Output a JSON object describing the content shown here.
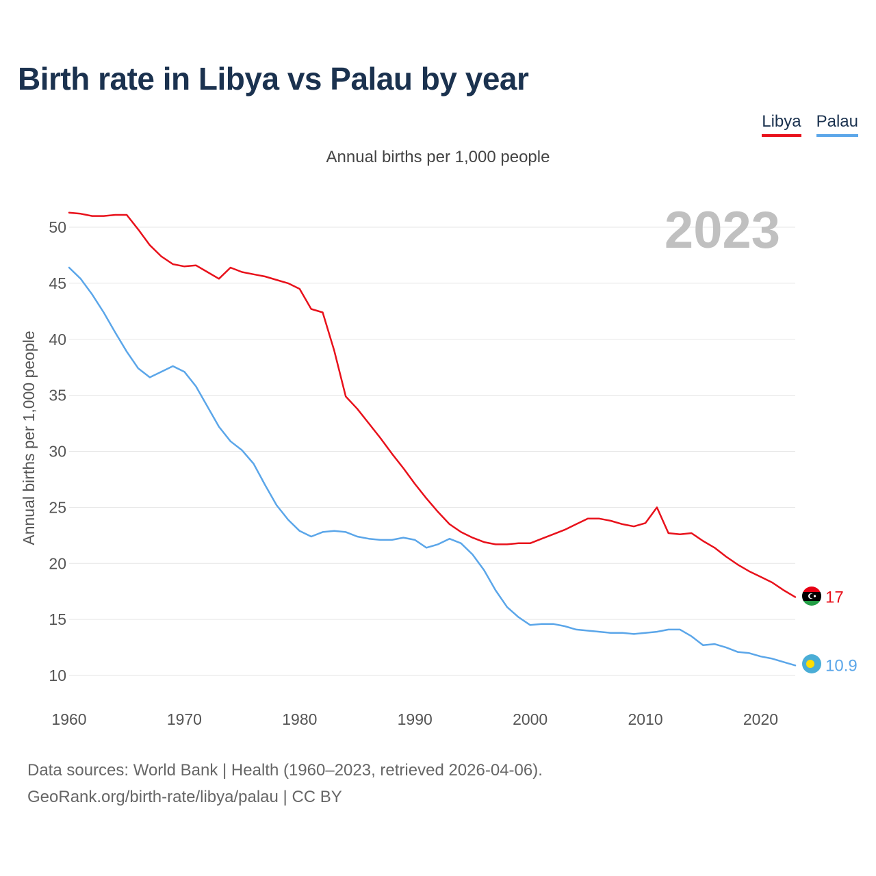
{
  "title": "Birth rate in Libya vs Palau by year",
  "subtitle": "Annual births per 1,000 people",
  "legend": [
    {
      "label": "Libya",
      "color": "#e8111b"
    },
    {
      "label": "Palau",
      "color": "#5ba6e9"
    }
  ],
  "source": {
    "line1": "Data sources: World Bank | Health (1960–2023, retrieved 2026-04-06).",
    "line2": "GeoRank.org/birth-rate/libya/palau | CC BY"
  },
  "chart_data": {
    "type": "line",
    "title": "Birth rate in Libya vs Palau by year",
    "ylabel": "Annual births per 1,000 people",
    "xlabel": "",
    "year_label": "2023",
    "xlim": [
      1960,
      2023
    ],
    "ylim": [
      10,
      52
    ],
    "x_ticks": [
      1960,
      1970,
      1980,
      1990,
      2000,
      2010,
      2020
    ],
    "y_ticks": [
      10,
      15,
      20,
      25,
      30,
      35,
      40,
      45,
      50
    ],
    "grid": true,
    "legend_position": "top-right",
    "x": [
      1960,
      1961,
      1962,
      1963,
      1964,
      1965,
      1966,
      1967,
      1968,
      1969,
      1970,
      1971,
      1972,
      1973,
      1974,
      1975,
      1976,
      1977,
      1978,
      1979,
      1980,
      1981,
      1982,
      1983,
      1984,
      1985,
      1986,
      1987,
      1988,
      1989,
      1990,
      1991,
      1992,
      1993,
      1994,
      1995,
      1996,
      1997,
      1998,
      1999,
      2000,
      2001,
      2002,
      2003,
      2004,
      2005,
      2006,
      2007,
      2008,
      2009,
      2010,
      2011,
      2012,
      2013,
      2014,
      2015,
      2016,
      2017,
      2018,
      2019,
      2020,
      2021,
      2022,
      2023
    ],
    "series": [
      {
        "name": "Libya",
        "color": "#e8111b",
        "end_label": "17",
        "values": [
          51.3,
          51.2,
          51.0,
          51.0,
          51.1,
          51.1,
          49.8,
          48.4,
          47.4,
          46.7,
          46.5,
          46.6,
          46.0,
          45.4,
          46.4,
          46.0,
          45.8,
          45.6,
          45.3,
          45.0,
          44.5,
          42.7,
          42.4,
          39.0,
          34.9,
          33.8,
          32.5,
          31.2,
          29.8,
          28.5,
          27.1,
          25.8,
          24.6,
          23.5,
          22.8,
          22.3,
          21.9,
          21.7,
          21.7,
          21.8,
          21.8,
          22.2,
          22.6,
          23.0,
          23.5,
          24.0,
          24.0,
          23.8,
          23.5,
          23.3,
          23.6,
          25.0,
          22.7,
          22.6,
          22.7,
          22.0,
          21.4,
          20.6,
          19.9,
          19.3,
          18.8,
          18.3,
          17.6,
          17.0
        ]
      },
      {
        "name": "Palau",
        "color": "#5ba6e9",
        "end_label": "10.9",
        "values": [
          46.4,
          45.4,
          44.0,
          42.4,
          40.6,
          38.9,
          37.4,
          36.6,
          37.1,
          37.6,
          37.1,
          35.8,
          34.0,
          32.2,
          30.9,
          30.1,
          28.9,
          27.0,
          25.2,
          23.9,
          22.9,
          22.4,
          22.8,
          22.9,
          22.8,
          22.4,
          22.2,
          22.1,
          22.1,
          22.3,
          22.1,
          21.4,
          21.7,
          22.2,
          21.8,
          20.8,
          19.4,
          17.6,
          16.1,
          15.2,
          14.5,
          14.6,
          14.6,
          14.4,
          14.1,
          14.0,
          13.9,
          13.8,
          13.8,
          13.7,
          13.8,
          13.9,
          14.1,
          14.1,
          13.5,
          12.7,
          12.8,
          12.5,
          12.1,
          12.0,
          11.7,
          11.5,
          11.2,
          10.9
        ]
      }
    ]
  }
}
